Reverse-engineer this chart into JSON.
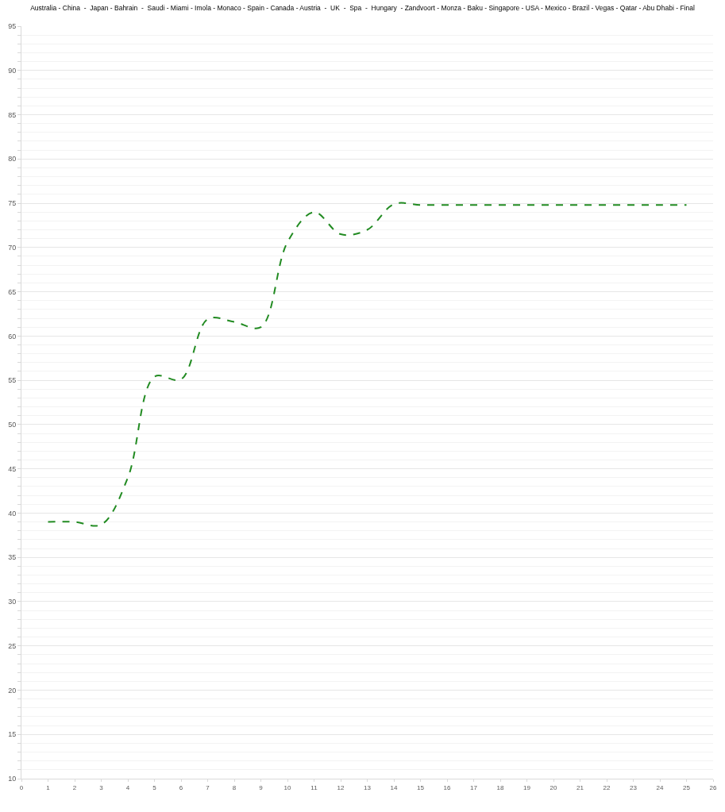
{
  "chart_data": {
    "type": "line",
    "title": "Australia - China  -  Japan - Bahrain  -  Saudi - Miami - Imola - Monaco - Spain - Canada - Austria  -  UK  -  Spa  -  Hungary  - Zandvoort - Monza - Baku - Singapore - USA - Mexico - Brazil - Vegas - Qatar - Abu Dhabi - Final",
    "x": [
      1,
      2,
      3,
      4,
      5,
      6,
      7,
      8,
      9,
      10,
      11,
      12,
      13,
      14,
      15,
      16,
      17,
      18,
      19,
      20,
      21,
      22,
      23,
      24,
      25
    ],
    "series": [
      {
        "color": "#228b22",
        "values": [
          39,
          39,
          38.7,
          44,
          55.4,
          55.1,
          61.9,
          61.6,
          61,
          70.6,
          74,
          71.5,
          72,
          74.9,
          74.8,
          74.8,
          74.8,
          74.8,
          74.8,
          74.8,
          74.8,
          74.8,
          74.8,
          74.8,
          74.8
        ]
      }
    ],
    "xlim": [
      0,
      26
    ],
    "xticks": [
      0,
      1,
      2,
      3,
      4,
      5,
      6,
      7,
      8,
      9,
      10,
      11,
      12,
      13,
      14,
      15,
      16,
      17,
      18,
      19,
      20,
      21,
      22,
      23,
      24,
      25,
      26
    ],
    "ylim": [
      10,
      95
    ],
    "yticks": [
      10,
      15,
      20,
      25,
      30,
      35,
      40,
      45,
      50,
      55,
      60,
      65,
      70,
      75,
      80,
      85,
      90,
      95
    ],
    "grid": "y",
    "marker": "none",
    "line_style": "dashed"
  }
}
